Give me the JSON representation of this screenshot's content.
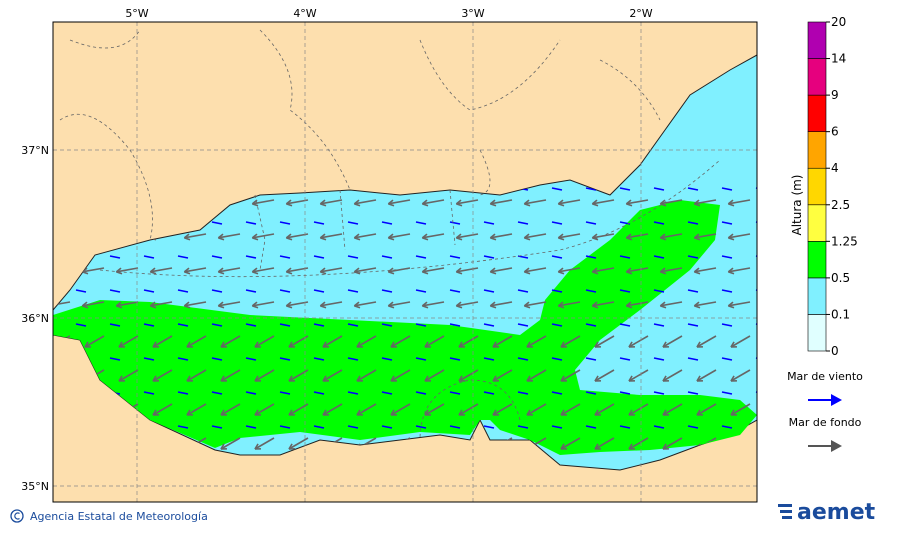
{
  "map": {
    "x_labels": [
      "5°W",
      "4°W",
      "3°W",
      "2°W"
    ],
    "y_labels": [
      "37°N",
      "36°N",
      "35°N"
    ],
    "colorbar": {
      "title": "Altura (m)",
      "ticks": [
        0,
        0.1,
        0.5,
        1.25,
        2.5,
        4,
        6,
        9,
        14,
        20
      ],
      "colors": [
        "#e0ffff",
        "#80f0ff",
        "#00ff00",
        "#ffff40",
        "#ffd700",
        "#ffa500",
        "#ff0000",
        "#e6007e",
        "#b000b0"
      ]
    },
    "legend": [
      {
        "label": "Mar de viento",
        "color": "#0000ff"
      },
      {
        "label": "Mar de fondo",
        "color": "#555555"
      }
    ]
  },
  "footer": {
    "credit": "Agencia Estatal de Meteorología",
    "logo": "aemet"
  }
}
